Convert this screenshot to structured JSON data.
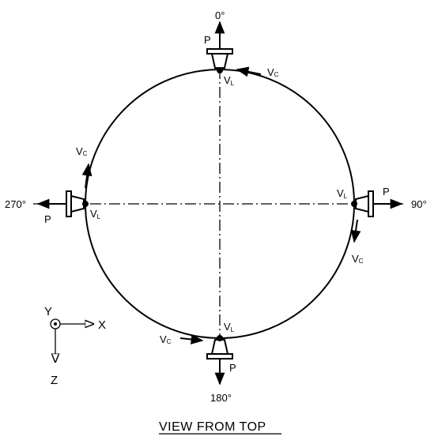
{
  "diagram": {
    "title": "VIEW FROM TOP",
    "angles": {
      "top": "0°",
      "right": "90°",
      "bottom": "180°",
      "left": "270°"
    },
    "nozzles": {
      "top": {
        "force_p": "P",
        "vc_main": "V",
        "vc_sub": "C",
        "vl_main": "V",
        "vl_sub": "L"
      },
      "right": {
        "force_p": "P",
        "vc_main": "V",
        "vc_sub": "C",
        "vl_main": "V",
        "vl_sub": "L"
      },
      "bottom": {
        "force_p": "P",
        "vc_main": "V",
        "vc_sub": "C",
        "vl_main": "V",
        "vl_sub": "L"
      },
      "left": {
        "force_p": "P",
        "vc_main": "V",
        "vc_sub": "C",
        "vl_main": "V",
        "vl_sub": "L"
      }
    },
    "axes": {
      "y": "Y",
      "x": "X",
      "z": "Z"
    }
  }
}
